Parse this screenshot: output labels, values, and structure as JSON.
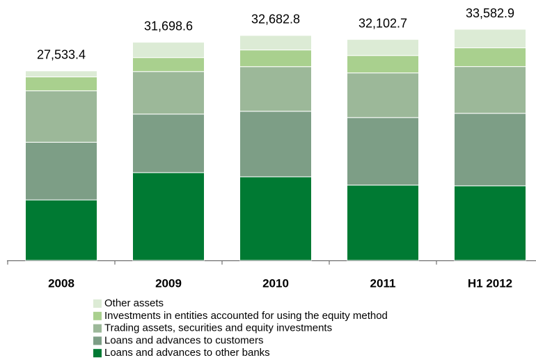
{
  "chart_data": {
    "type": "stacked-bar",
    "categories": [
      "2008",
      "2009",
      "2010",
      "2011",
      "H1 2012"
    ],
    "totals": [
      27533.4,
      31698.6,
      32682.8,
      32102.7,
      33582.9
    ],
    "value_labels": [
      "27,533.4",
      "31,698.6",
      "32,682.8",
      "32,102.7",
      "33,582.9"
    ],
    "series": [
      {
        "name": "Loans and advances to other banks",
        "color": "#007a33",
        "values": [
          8790,
          12760,
          12150,
          10940,
          10840
        ]
      },
      {
        "name": "Loans and advances to customers",
        "color": "#7d9e86",
        "values": [
          8380,
          8500,
          9520,
          9820,
          10530
        ]
      },
      {
        "name": "Trading assets, securities and equity investments",
        "color": "#9cb899",
        "values": [
          7470,
          6180,
          6480,
          6480,
          6790
        ]
      },
      {
        "name": "Investments in entities accounted for using the equity method",
        "color": "#a9d08e",
        "values": [
          2020,
          2030,
          2430,
          2530,
          2730
        ]
      },
      {
        "name": "Other assets",
        "color": "#dcebd5",
        "values": [
          873.4,
          2228.6,
          2102.8,
          2332.7,
          2692.9
        ]
      }
    ]
  }
}
